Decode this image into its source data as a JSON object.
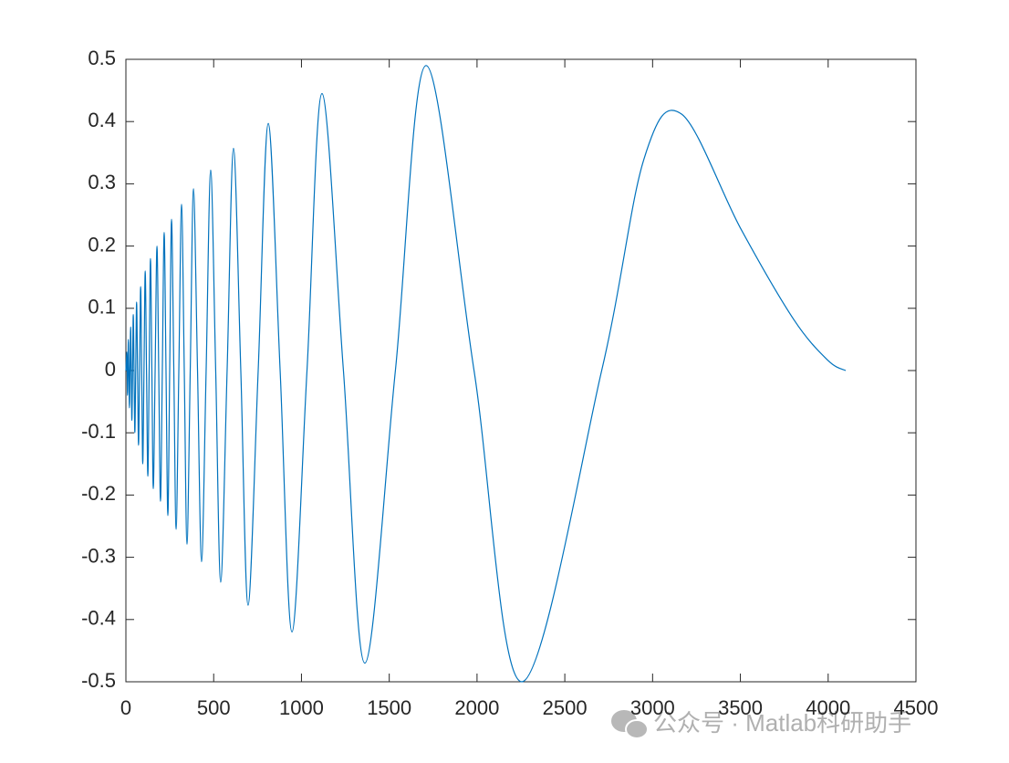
{
  "chart_data": {
    "type": "line",
    "x": [
      0,
      5,
      7,
      9,
      11.5,
      14,
      17,
      20,
      23.5,
      27,
      30.5,
      34,
      38,
      42,
      46.5,
      51,
      56,
      61,
      66.5,
      72,
      78,
      84,
      90,
      96,
      103,
      110,
      117.5,
      125,
      132.5,
      140,
      148,
      156,
      166.5,
      177,
      187,
      197,
      207.5,
      218,
      228.5,
      239,
      249.5,
      260,
      273,
      286,
      301.5,
      317,
      332.5,
      348,
      366.5,
      385,
      408,
      431,
      457,
      483,
      511.5,
      540,
      576.5,
      613,
      654.5,
      696,
      753.5,
      811,
      878.5,
      946,
      1031.5,
      1117,
      1239,
      1361,
      1535,
      1710,
      1983,
      2255,
      2710,
      2950,
      3165,
      3500,
      3804,
      4000,
      4100
    ],
    "series": [
      {
        "color": "#0072bd",
        "values": [
          0,
          0.03,
          0,
          -0.04,
          0,
          0.05,
          0,
          -0.06,
          0,
          0.07,
          0,
          -0.08,
          0,
          0.09,
          0,
          -0.1,
          0,
          0.11,
          0,
          -0.12,
          0,
          0.135,
          0,
          -0.15,
          0,
          0.16,
          0,
          -0.17,
          0,
          0.18,
          0,
          -0.19,
          0,
          0.2,
          0,
          -0.21,
          0,
          0.222,
          0,
          -0.233,
          0,
          0.243,
          0,
          -0.255,
          0,
          0.267,
          0,
          -0.279,
          0,
          0.292,
          0,
          -0.307,
          0,
          0.322,
          0,
          -0.34,
          0,
          0.357,
          0,
          -0.377,
          0,
          0.397,
          0,
          -0.42,
          0,
          0.445,
          0,
          -0.47,
          0,
          0.49,
          0,
          -0.5,
          0,
          0.339,
          0.412,
          0.229,
          0.082,
          0.016,
          0
        ]
      }
    ],
    "xlim": [
      0,
      4500
    ],
    "xticks": [
      0,
      500,
      1000,
      1500,
      2000,
      2500,
      3000,
      3500,
      4000,
      4500
    ],
    "ylim": [
      -0.5,
      0.5
    ],
    "yticks": [
      -0.5,
      -0.4,
      -0.3,
      -0.2,
      -0.1,
      0,
      0.1,
      0.2,
      0.3,
      0.4,
      0.5
    ],
    "watermark": "公众号 · Matlab科研助手"
  }
}
